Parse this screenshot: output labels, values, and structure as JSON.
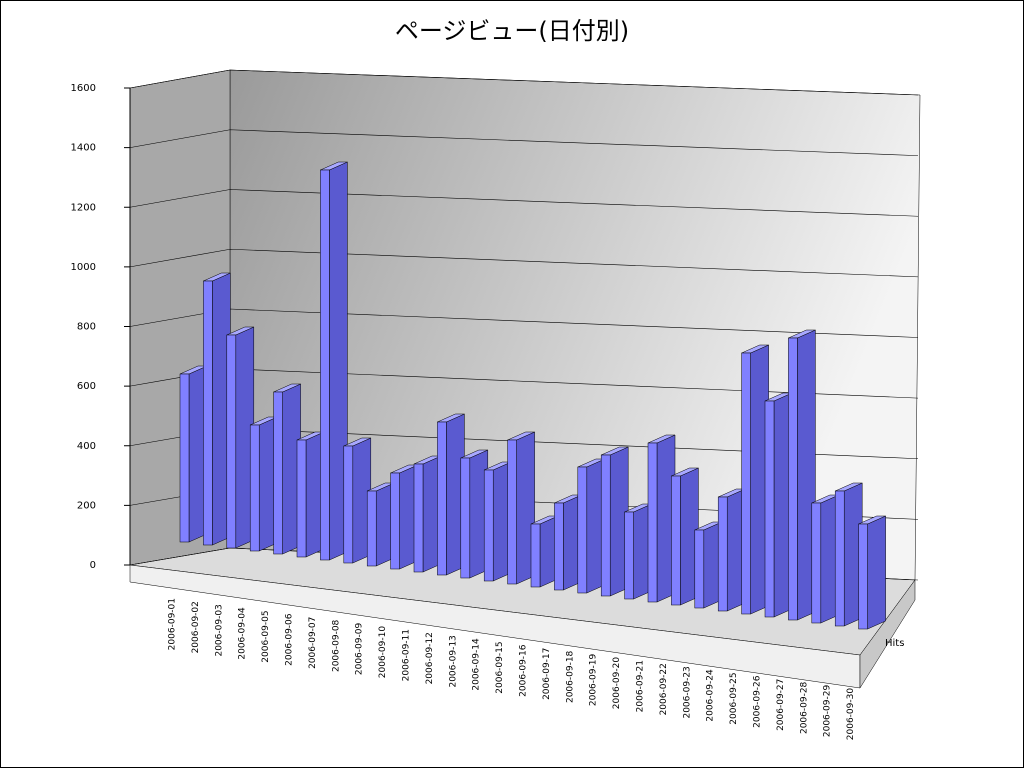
{
  "chart_data": {
    "type": "bar3d",
    "title": "ページビュー(日付別)",
    "categories": [
      "2006-09-01",
      "2006-09-02",
      "2006-09-03",
      "2006-09-04",
      "2006-09-05",
      "2006-09-06",
      "2006-09-07",
      "2006-09-08",
      "2006-09-09",
      "2006-09-10",
      "2006-09-11",
      "2006-09-12",
      "2006-09-13",
      "2006-09-14",
      "2006-09-15",
      "2006-09-16",
      "2006-09-17",
      "2006-09-18",
      "2006-09-19",
      "2006-09-20",
      "2006-09-21",
      "2006-09-22",
      "2006-09-23",
      "2006-09-24",
      "2006-09-25",
      "2006-09-26",
      "2006-09-27",
      "2006-09-28",
      "2006-09-29",
      "2006-09-30"
    ],
    "series": [
      {
        "name": "Hits",
        "color": "#8080ff",
        "values": [
          560,
          880,
          710,
          420,
          540,
          390,
          1300,
          390,
          250,
          320,
          360,
          510,
          400,
          370,
          480,
          210,
          290,
          420,
          470,
          290,
          530,
          430,
          260,
          380,
          870,
          720,
          940,
          400,
          450,
          350
        ]
      }
    ],
    "ylim": [
      0,
      1600
    ],
    "yticks": [
      0,
      200,
      400,
      600,
      800,
      1000,
      1200,
      1400,
      1600
    ],
    "grid": true
  }
}
